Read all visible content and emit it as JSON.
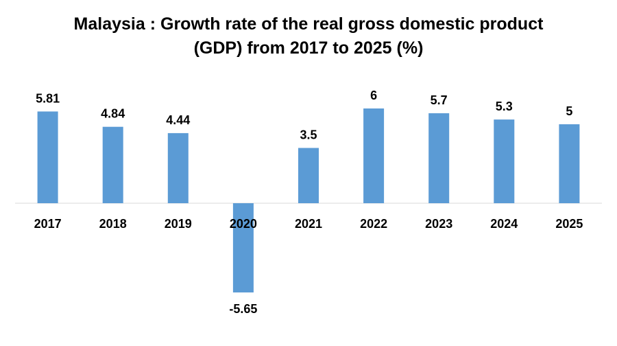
{
  "chart_data": {
    "type": "bar",
    "title_line1": "Malaysia : Growth rate of the real gross domestic product",
    "title_line2": "(GDP) from 2017 to 2025 (%)",
    "categories": [
      "2017",
      "2018",
      "2019",
      "2020",
      "2021",
      "2022",
      "2023",
      "2024",
      "2025"
    ],
    "values": [
      5.81,
      4.84,
      4.44,
      -5.65,
      3.5,
      6,
      5.7,
      5.3,
      5
    ],
    "data_labels": [
      "5.81",
      "4.84",
      "4.44",
      "-5.65",
      "3.5",
      "6",
      "5.7",
      "5.3",
      "5"
    ],
    "xlabel": "",
    "ylabel": "",
    "ylim": [
      -5.65,
      6
    ],
    "grid": false,
    "legend": "none",
    "bar_color": "#5B9BD5",
    "axis_color": "#D9D9D9"
  }
}
